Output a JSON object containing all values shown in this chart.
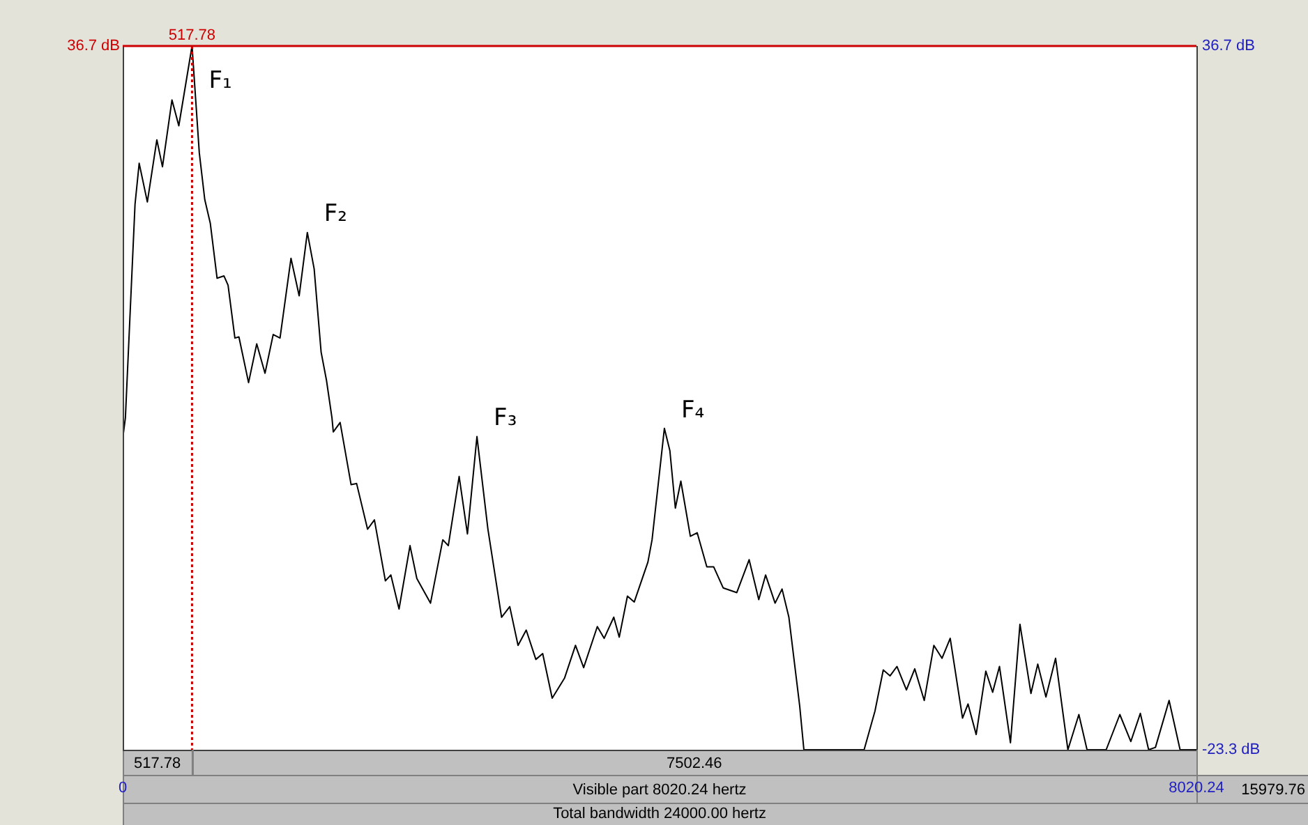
{
  "chart_data": {
    "type": "line",
    "x": [
      0,
      20,
      92,
      123,
      184,
      255,
      297,
      368,
      419,
      517.78,
      572,
      613,
      654,
      705,
      756,
      787,
      838,
      868,
      940,
      1001,
      1063,
      1124,
      1175,
      1257,
      1318,
      1379,
      1430,
      1482,
      1522,
      1563,
      1573,
      1624,
      1706,
      1747,
      1829,
      1880,
      1962,
      2003,
      2064,
      2146,
      2197,
      2299,
      2391,
      2432,
      2513,
      2575,
      2646,
      2728,
      2830,
      2891,
      2953,
      3014,
      3086,
      3137,
      3208,
      3300,
      3382,
      3443,
      3545,
      3596,
      3668,
      3709,
      3770,
      3821,
      3923,
      3954,
      4046,
      4087,
      4128,
      4169,
      4240,
      4291,
      4363,
      4414,
      4485,
      4587,
      4679,
      4751,
      4802,
      4873,
      4925,
      4976,
      5057,
      5088,
      5538,
      5619,
      5681,
      5732,
      5783,
      5854,
      5916,
      5987,
      6059,
      6120,
      6181,
      6273,
      6314,
      6375,
      6447,
      6498,
      6549,
      6631,
      6702,
      6784,
      6835,
      6896,
      6968,
      7060,
      7142,
      7203,
      7346,
      7448,
      7530,
      7601,
      7663,
      7714,
      7816,
      7898,
      8020.24
    ],
    "series": [
      {
        "color": "#000000",
        "values": [
          3.2,
          5.0,
          23.2,
          26.7,
          23.4,
          28.7,
          26.4,
          32.1,
          29.9,
          36.7,
          27.6,
          23.6,
          21.6,
          16.9,
          17.1,
          16.3,
          11.8,
          11.9,
          8.0,
          11.3,
          8.8,
          12.1,
          11.8,
          18.6,
          15.4,
          20.8,
          17.7,
          10.6,
          8.2,
          5.0,
          3.8,
          4.6,
          -0.7,
          -0.6,
          -4.5,
          -3.7,
          -8.9,
          -8.4,
          -11.3,
          -5.9,
          -8.7,
          -10.8,
          -5.4,
          -5.9,
          0.0,
          -4.9,
          3.4,
          -4.5,
          -12.0,
          -11.1,
          -14.4,
          -13.1,
          -15.6,
          -15.1,
          -18.9,
          -17.2,
          -14.4,
          -16.3,
          -12.8,
          -13.8,
          -12.0,
          -13.7,
          -10.2,
          -10.7,
          -7.3,
          -5.4,
          4.1,
          2.2,
          -2.7,
          -0.4,
          -5.1,
          -4.8,
          -7.7,
          -7.7,
          -9.5,
          -9.9,
          -7.1,
          -10.5,
          -8.4,
          -10.8,
          -9.6,
          -12.0,
          -19.6,
          -23.3,
          -23.3,
          -20.0,
          -16.5,
          -17.0,
          -16.2,
          -18.2,
          -16.4,
          -19.1,
          -14.4,
          -15.5,
          -13.8,
          -20.6,
          -19.4,
          -22.0,
          -16.6,
          -18.4,
          -16.2,
          -22.7,
          -12.6,
          -18.5,
          -16.0,
          -18.8,
          -15.5,
          -23.3,
          -20.3,
          -23.3,
          -23.3,
          -20.3,
          -22.6,
          -20.2,
          -23.3,
          -23.1,
          -19.1,
          -23.3,
          -23.3
        ]
      }
    ],
    "xlim": [
      0,
      8020.24
    ],
    "xticks": [
      0,
      8020.24
    ],
    "ylim": [
      -23.3,
      36.7
    ],
    "yticks": [
      {
        "value": 36.7,
        "label": "36.7 dB"
      },
      {
        "value": -23.3,
        "label": "-23.3 dB"
      }
    ],
    "xlabel": "Visible part 8020.24 hertz",
    "ref_lines": [
      {
        "axis": "y",
        "value": 36.7,
        "label": "36.7 dB",
        "color": "#cc0000",
        "line_style": "solid"
      },
      {
        "axis": "x",
        "value": 517.78,
        "label": "517.78",
        "color": "#cc0000",
        "line_style": "dotted"
      }
    ],
    "annotations": [
      {
        "text": "F₁",
        "x": 517.78,
        "y": 36.7
      },
      {
        "text": "F₂",
        "x": 1379,
        "y": 20.8
      },
      {
        "text": "F₃",
        "x": 2646,
        "y": 3.4
      },
      {
        "text": "F₄",
        "x": 4046,
        "y": 4.1
      },
      "517.78",
      "7502.46",
      "15979.76",
      "Total bandwidth 24000.00 hertz"
    ]
  }
}
